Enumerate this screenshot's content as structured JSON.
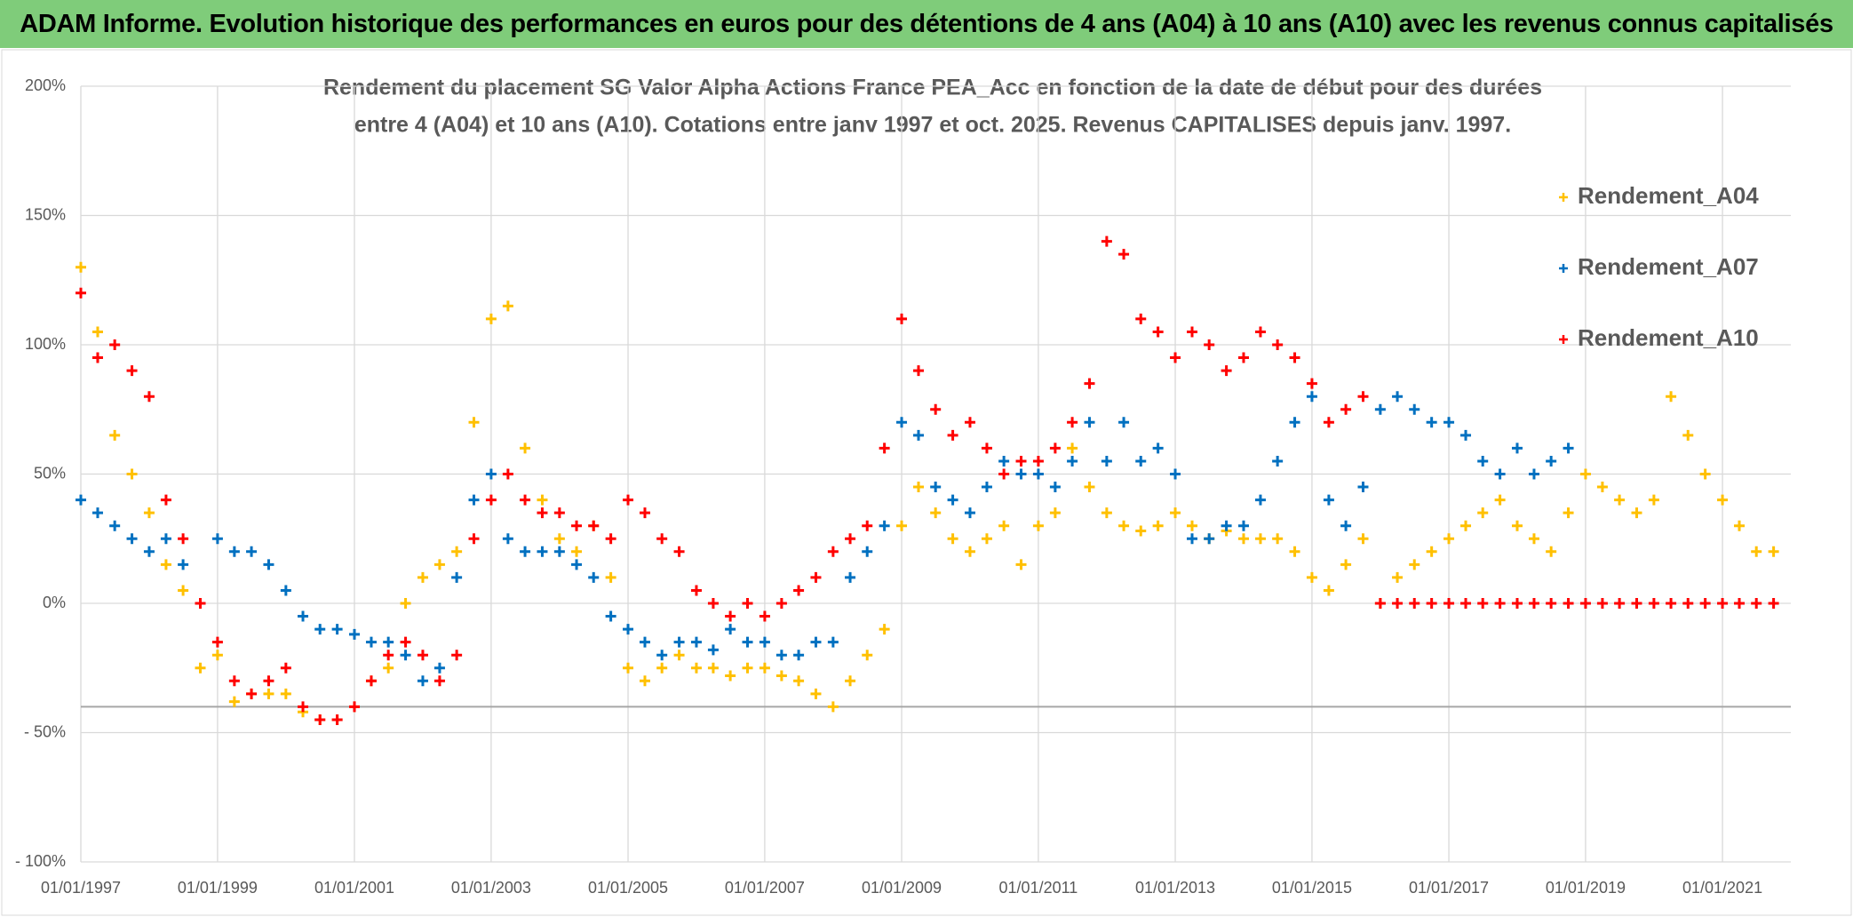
{
  "header": {
    "title": "ADAM Informe. Evolution historique des performances en euros pour des détentions de 4 ans (A04) à 10 ans (A10) avec les revenus connus capitalisés"
  },
  "chart_data": {
    "type": "scatter",
    "title": [
      "Rendement du placement SG Valor Alpha Actions France PEA_Acc en fonction de la date de début pour des durées",
      "entre 4 (A04) et 10 ans (A10). Cotations entre janv 1997 et oct. 2025. Revenus CAPITALISES depuis janv. 1997."
    ],
    "x": [
      "1997-01-01",
      "1997-04-01",
      "1997-07-01",
      "1997-10-01",
      "1998-01-01",
      "1998-04-01",
      "1998-07-01",
      "1998-10-01",
      "1999-01-01",
      "1999-04-01",
      "1999-07-01",
      "1999-10-01",
      "2000-01-01",
      "2000-04-01",
      "2000-07-01",
      "2000-10-01",
      "2001-01-01",
      "2001-04-01",
      "2001-07-01",
      "2001-10-01",
      "2002-01-01",
      "2002-04-01",
      "2002-07-01",
      "2002-10-01",
      "2003-01-01",
      "2003-04-01",
      "2003-07-01",
      "2003-10-01",
      "2004-01-01",
      "2004-04-01",
      "2004-07-01",
      "2004-10-01",
      "2005-01-01",
      "2005-04-01",
      "2005-07-01",
      "2005-10-01",
      "2006-01-01",
      "2006-04-01",
      "2006-07-01",
      "2006-10-01",
      "2007-01-01",
      "2007-04-01",
      "2007-07-01",
      "2007-10-01",
      "2008-01-01",
      "2008-04-01",
      "2008-07-01",
      "2008-10-01",
      "2009-01-01",
      "2009-04-01",
      "2009-07-01",
      "2009-10-01",
      "2010-01-01",
      "2010-04-01",
      "2010-07-01",
      "2010-10-01",
      "2011-01-01",
      "2011-04-01",
      "2011-07-01",
      "2011-10-01",
      "2012-01-01",
      "2012-04-01",
      "2012-07-01",
      "2012-10-01",
      "2013-01-01",
      "2013-04-01",
      "2013-07-01",
      "2013-10-01",
      "2014-01-01",
      "2014-04-01",
      "2014-07-01",
      "2014-10-01",
      "2015-01-01",
      "2015-04-01",
      "2015-07-01",
      "2015-10-01",
      "2016-01-01",
      "2016-04-01",
      "2016-07-01",
      "2016-10-01",
      "2017-01-01",
      "2017-04-01",
      "2017-07-01",
      "2017-10-01",
      "2018-01-01",
      "2018-04-01",
      "2018-07-01",
      "2018-10-01",
      "2019-01-01",
      "2019-04-01",
      "2019-07-01",
      "2019-10-01",
      "2020-01-01",
      "2020-04-01",
      "2020-07-01",
      "2020-10-01",
      "2021-01-01",
      "2021-04-01",
      "2021-07-01",
      "2021-10-01"
    ],
    "series": [
      {
        "name": "Rendement_A04",
        "color": "#ffc000",
        "values": [
          130,
          105,
          65,
          50,
          35,
          15,
          5,
          -25,
          -20,
          -38,
          -35,
          -35,
          -35,
          -42,
          -45,
          -45,
          -40,
          -30,
          -25,
          0,
          10,
          15,
          20,
          70,
          110,
          115,
          60,
          40,
          25,
          20,
          30,
          10,
          -25,
          -30,
          -25,
          -20,
          -25,
          -25,
          -28,
          -25,
          -25,
          -28,
          -30,
          -35,
          -40,
          -30,
          -20,
          -10,
          30,
          45,
          35,
          25,
          20,
          25,
          30,
          15,
          30,
          35,
          60,
          45,
          35,
          30,
          28,
          30,
          35,
          30,
          25,
          28,
          25,
          25,
          25,
          20,
          10,
          5,
          15,
          25,
          0,
          10,
          15,
          20,
          25,
          30,
          35,
          40,
          30,
          25,
          20,
          35,
          50,
          45,
          40,
          35,
          40,
          80,
          65,
          50,
          40,
          30,
          20,
          20
        ]
      },
      {
        "name": "Rendement_A07",
        "color": "#0070c0",
        "values": [
          40,
          35,
          30,
          25,
          20,
          25,
          15,
          0,
          25,
          20,
          20,
          15,
          5,
          -5,
          -10,
          -10,
          -12,
          -15,
          -15,
          -20,
          -30,
          -25,
          10,
          40,
          50,
          25,
          20,
          20,
          20,
          15,
          10,
          -5,
          -10,
          -15,
          -20,
          -15,
          -15,
          -18,
          -10,
          -15,
          -15,
          -20,
          -20,
          -15,
          -15,
          10,
          20,
          30,
          70,
          65,
          45,
          40,
          35,
          45,
          55,
          50,
          50,
          45,
          55,
          70,
          55,
          70,
          55,
          60,
          50,
          25,
          25,
          30,
          30,
          40,
          55,
          70,
          80,
          40,
          30,
          45,
          75,
          80,
          75,
          70,
          70,
          65,
          55,
          50,
          60,
          50,
          55,
          60,
          null,
          null,
          null,
          null,
          null,
          null,
          null,
          null,
          null,
          null,
          null,
          null
        ]
      },
      {
        "name": "Rendement_A10",
        "color": "#ff0000",
        "values": [
          120,
          95,
          100,
          90,
          80,
          40,
          25,
          0,
          -15,
          -30,
          -35,
          -30,
          -25,
          -40,
          -45,
          -45,
          -40,
          -30,
          -20,
          -15,
          -20,
          -30,
          -20,
          25,
          40,
          50,
          40,
          35,
          35,
          30,
          30,
          25,
          40,
          35,
          25,
          20,
          5,
          0,
          -5,
          0,
          -5,
          0,
          5,
          10,
          20,
          25,
          30,
          60,
          110,
          90,
          75,
          65,
          70,
          60,
          50,
          55,
          55,
          60,
          70,
          85,
          140,
          135,
          110,
          105,
          95,
          105,
          100,
          90,
          95,
          105,
          100,
          95,
          85,
          70,
          75,
          80,
          0,
          0,
          0,
          0,
          0,
          0,
          0,
          0,
          0,
          0,
          0,
          0,
          0,
          0,
          0,
          0,
          0,
          0,
          0,
          0,
          0,
          0,
          0,
          0
        ]
      }
    ],
    "xlim": [
      "1997-01-01",
      "2022-01-01"
    ],
    "xticks": [
      {
        "value": "1997-01-01",
        "label": "01/01/1997"
      },
      {
        "value": "1999-01-01",
        "label": "01/01/1999"
      },
      {
        "value": "2001-01-01",
        "label": "01/01/2001"
      },
      {
        "value": "2003-01-01",
        "label": "01/01/2003"
      },
      {
        "value": "2005-01-01",
        "label": "01/01/2005"
      },
      {
        "value": "2007-01-01",
        "label": "01/01/2007"
      },
      {
        "value": "2009-01-01",
        "label": "01/01/2009"
      },
      {
        "value": "2011-01-01",
        "label": "01/01/2011"
      },
      {
        "value": "2013-01-01",
        "label": "01/01/2013"
      },
      {
        "value": "2015-01-01",
        "label": "01/01/2015"
      },
      {
        "value": "2017-01-01",
        "label": "01/01/2017"
      },
      {
        "value": "2019-01-01",
        "label": "01/01/2019"
      },
      {
        "value": "2021-01-01",
        "label": "01/01/2021"
      }
    ],
    "ylim": [
      -100,
      200
    ],
    "yticks": [
      {
        "value": -100,
        "label": "- 100%"
      },
      {
        "value": -50,
        "label": "- 50%"
      },
      {
        "value": 0,
        "label": "0%"
      },
      {
        "value": 50,
        "label": "50%"
      },
      {
        "value": 100,
        "label": "100%"
      },
      {
        "value": 150,
        "label": "150%"
      },
      {
        "value": 200,
        "label": "200%"
      }
    ],
    "hline": -40,
    "grid": true,
    "legend": "right"
  }
}
